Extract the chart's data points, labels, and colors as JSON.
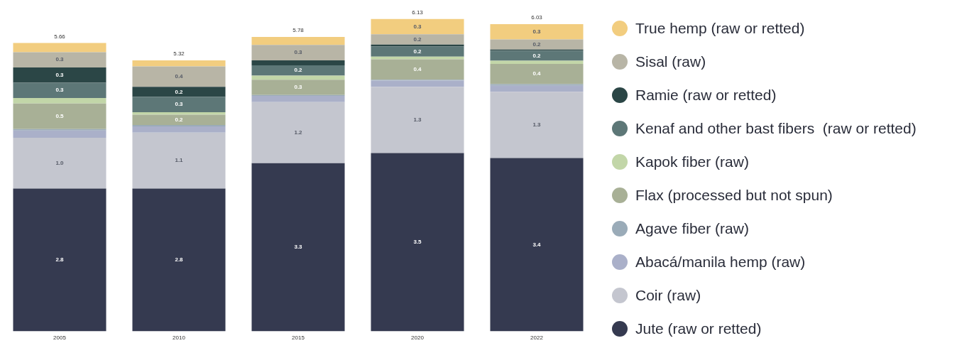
{
  "chart_data": {
    "type": "bar",
    "stacked": true,
    "categories": [
      "2005",
      "2010",
      "2015",
      "2020",
      "2022"
    ],
    "series": [
      {
        "name": "Jute (raw or retted)",
        "color": "#353a50",
        "values": [
          2.8,
          2.8,
          3.3,
          3.5,
          3.4
        ],
        "value_labels": [
          "2.8",
          "2.8",
          "3.3",
          "3.5",
          "3.4"
        ]
      },
      {
        "name": "Coir (raw)",
        "color": "#c4c6cf",
        "values": [
          1.0,
          1.1,
          1.2,
          1.3,
          1.3
        ],
        "value_labels": [
          "1.0",
          "1.1",
          "1.2",
          "1.3",
          "1.3"
        ]
      },
      {
        "name": "Abacá/manila hemp (raw)",
        "color": "#aab0c9",
        "values": [
          0.14,
          0.12,
          0.12,
          0.12,
          0.12
        ]
      },
      {
        "name": "Agave fiber (raw)",
        "color": "#9aabb8",
        "values": [
          0.03,
          0.03,
          0.02,
          0.02,
          0.03
        ]
      },
      {
        "name": "Flax (processed but not spun)",
        "color": "#a8b096",
        "values": [
          0.5,
          0.2,
          0.3,
          0.4,
          0.4
        ],
        "value_labels": [
          "0.5",
          "0.2",
          "0.3",
          "0.4",
          "0.4"
        ]
      },
      {
        "name": "Kapok fiber (raw)",
        "color": "#c2d6a8",
        "values": [
          0.11,
          0.05,
          0.08,
          0.05,
          0.06
        ]
      },
      {
        "name": "Kenaf and other bast fibers  (raw or retted)",
        "color": "#5d7777",
        "values": [
          0.3,
          0.3,
          0.2,
          0.2,
          0.2
        ],
        "value_labels": [
          "0.3",
          "0.3",
          "0.2",
          "0.2",
          "0.2"
        ]
      },
      {
        "name": "Ramie (raw or retted)",
        "color": "#2b4646",
        "values": [
          0.3,
          0.2,
          0.1,
          0.04,
          0.02
        ],
        "value_labels": [
          "0.3",
          "0.2",
          null,
          null,
          null
        ]
      },
      {
        "name": "Sisal (raw)",
        "color": "#b8b5a6",
        "values": [
          0.3,
          0.4,
          0.3,
          0.2,
          0.2
        ],
        "value_labels": [
          "0.3",
          "0.4",
          "0.3",
          "0.2",
          "0.2"
        ]
      },
      {
        "name": "True hemp (raw or retted)",
        "color": "#f2cd7f",
        "values": [
          0.18,
          0.12,
          0.16,
          0.3,
          0.3
        ],
        "value_labels": [
          null,
          null,
          null,
          "0.3",
          "0.3"
        ]
      }
    ],
    "totals": [
      "5.66",
      "5.32",
      "5.78",
      "6.13",
      "6.03"
    ],
    "legend": "right",
    "grid": false
  }
}
